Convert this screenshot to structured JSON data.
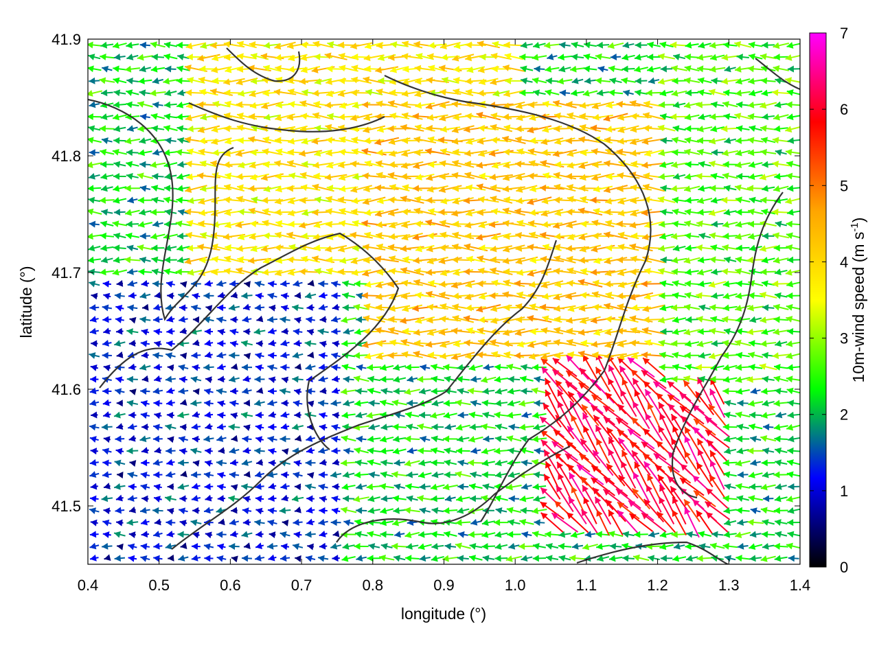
{
  "chart_data": {
    "type": "vector-field",
    "xlabel": "longitude (°)",
    "ylabel": "latitude (°)",
    "xlim": [
      0.4,
      1.4
    ],
    "ylim": [
      41.45,
      41.9
    ],
    "xticks": [
      "0.4",
      "0.5",
      "0.6",
      "0.7",
      "0.8",
      "0.9",
      "1.0",
      "1.1",
      "1.2",
      "1.3",
      "1.4"
    ],
    "xtick_values": [
      0.4,
      0.5,
      0.6,
      0.7,
      0.8,
      0.9,
      1.0,
      1.1,
      1.2,
      1.3,
      1.4
    ],
    "yticks": [
      "41.5",
      "41.6",
      "41.7",
      "41.8",
      "41.9"
    ],
    "ytick_values": [
      41.5,
      41.6,
      41.7,
      41.8,
      41.9
    ],
    "colorbar": {
      "label": "10m-wind speed (m s",
      "label_sup": "-1",
      "label_close": ")",
      "range": [
        0,
        7
      ],
      "ticks": [
        "0",
        "1",
        "2",
        "3",
        "4",
        "5",
        "6",
        "7"
      ],
      "tick_values": [
        0,
        1,
        2,
        3,
        4,
        5,
        6,
        7
      ],
      "colormap": [
        "#000000",
        "#0000ff",
        "#00ff00",
        "#ffff00",
        "#ffa500",
        "#ff0000",
        "#ff00ff"
      ]
    },
    "contour_color": "#333333",
    "wind_field_description_regions": [
      {
        "lon": [
          0.4,
          0.75
        ],
        "lat": [
          41.45,
          41.7
        ],
        "speed": 1.2,
        "direction": "west"
      },
      {
        "lon": [
          0.55,
          1.0
        ],
        "lat": [
          41.7,
          41.9
        ],
        "speed": 3.8,
        "direction": "west"
      },
      {
        "lon": [
          0.8,
          1.2
        ],
        "lat": [
          41.62,
          41.85
        ],
        "speed": 4.2,
        "direction": "west"
      },
      {
        "lon": [
          1.05,
          1.3
        ],
        "lat": [
          41.48,
          41.62
        ],
        "speed": 6.0,
        "direction": "northwest"
      },
      {
        "lon": [
          1.2,
          1.4
        ],
        "lat": [
          41.6,
          41.9
        ],
        "speed": 2.6,
        "direction": "west"
      }
    ]
  }
}
